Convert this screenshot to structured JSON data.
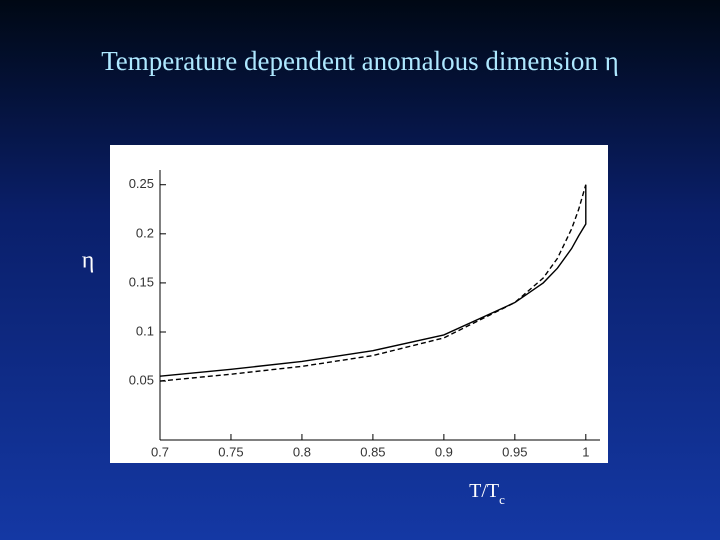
{
  "chart_data": {
    "type": "line",
    "title": "Temperature dependent anomalous dimension η",
    "y_label": "η",
    "x_label": {
      "text": "T/T",
      "subscript": "c"
    },
    "xlim": [
      0.7,
      1.01
    ],
    "ylim": [
      -0.01,
      0.265
    ],
    "xticks": [
      0.7,
      0.75,
      0.8,
      0.85,
      0.9,
      0.95,
      1
    ],
    "yticks": [
      0.05,
      0.1,
      0.15,
      0.2,
      0.25
    ],
    "series": [
      {
        "color": "#000000",
        "dash": "solid",
        "x": [
          0.7,
          0.75,
          0.8,
          0.85,
          0.9,
          0.95,
          0.97,
          0.98,
          0.99,
          0.995,
          1.0,
          1.0
        ],
        "values": [
          0.055,
          0.062,
          0.07,
          0.081,
          0.097,
          0.13,
          0.15,
          0.165,
          0.185,
          0.198,
          0.21,
          0.25
        ]
      },
      {
        "color": "#000000",
        "dash": "dashed",
        "x": [
          0.7,
          0.75,
          0.8,
          0.85,
          0.9,
          0.95,
          0.97,
          0.98,
          0.99,
          0.995,
          1.0
        ],
        "values": [
          0.05,
          0.057,
          0.065,
          0.076,
          0.094,
          0.13,
          0.155,
          0.175,
          0.205,
          0.225,
          0.25
        ]
      }
    ]
  }
}
